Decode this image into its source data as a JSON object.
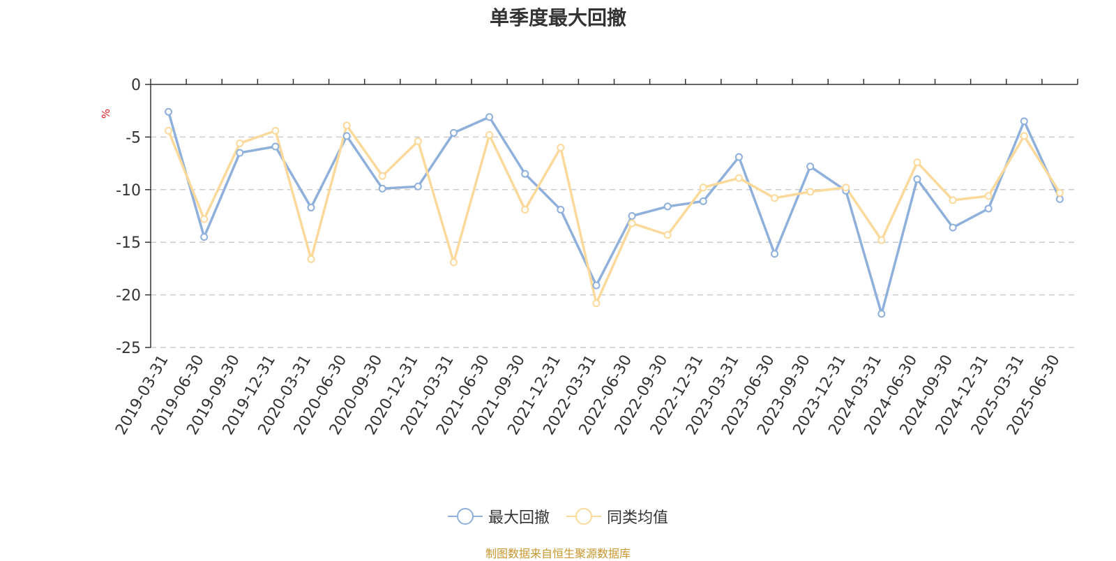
{
  "chart_data": {
    "type": "line",
    "title": "单季度最大回撤",
    "ylabel": "%",
    "ylim": [
      -25,
      0
    ],
    "yticks": [
      0,
      -5,
      -10,
      -15,
      -20,
      -25
    ],
    "grid": "horizontal dashed",
    "legend_position": "bottom-center",
    "categories": [
      "2019-03-31",
      "2019-06-30",
      "2019-09-30",
      "2019-12-31",
      "2020-03-31",
      "2020-06-30",
      "2020-09-30",
      "2020-12-31",
      "2021-03-31",
      "2021-06-30",
      "2021-09-30",
      "2021-12-31",
      "2022-03-31",
      "2022-06-30",
      "2022-09-30",
      "2022-12-31",
      "2023-03-31",
      "2023-06-30",
      "2023-09-30",
      "2023-12-31",
      "2024-03-31",
      "2024-06-30",
      "2024-09-30",
      "2024-12-31",
      "2025-03-31",
      "2025-06-30"
    ],
    "series": [
      {
        "name": "最大回撤",
        "color": "#8eb0db",
        "values": [
          -2.6,
          -14.5,
          -6.5,
          -5.9,
          -11.7,
          -4.9,
          -9.9,
          -9.7,
          -4.6,
          -3.1,
          -8.5,
          -11.9,
          -19.1,
          -12.5,
          -11.6,
          -11.1,
          -6.9,
          -16.1,
          -7.8,
          -10.1,
          -21.8,
          -9.0,
          -13.6,
          -11.8,
          -3.5,
          -10.9
        ]
      },
      {
        "name": "同类均值",
        "color": "#fbd99a",
        "values": [
          -4.4,
          -12.8,
          -5.6,
          -4.4,
          -16.6,
          -3.9,
          -8.7,
          -5.4,
          -16.9,
          -4.8,
          -11.9,
          -6.0,
          -20.8,
          -13.2,
          -14.3,
          -9.8,
          -8.9,
          -10.8,
          -10.2,
          -9.8,
          -14.8,
          -7.4,
          -11.0,
          -10.6,
          -4.9,
          -10.3
        ]
      }
    ]
  },
  "source_note": "制图数据来自恒生聚源数据库"
}
